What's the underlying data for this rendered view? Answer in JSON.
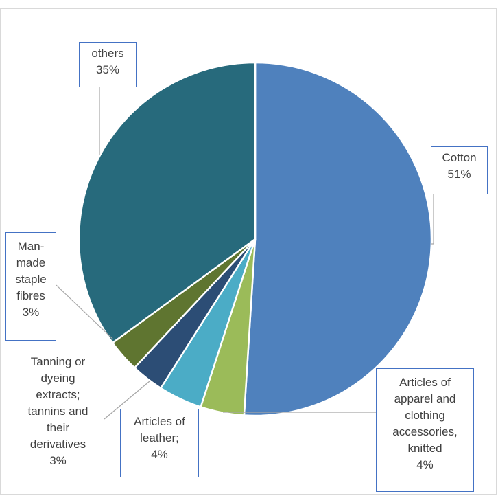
{
  "chart_data": {
    "type": "pie",
    "title": "",
    "slices": [
      {
        "label": "Cotton",
        "value": 51,
        "pct_label": "51%",
        "color": "#4f81bd"
      },
      {
        "label": "Articles of apparel and clothing accessories, knitted",
        "value": 4,
        "pct_label": "4%",
        "color": "#9bbb59"
      },
      {
        "label": "Articles of leather;",
        "value": 4,
        "pct_label": "4%",
        "color": "#4bacc6"
      },
      {
        "label": "Tanning or dyeing extracts; tannins and their derivatives",
        "value": 3,
        "pct_label": "3%",
        "color": "#2c4d75"
      },
      {
        "label": "Man-made staple fibres",
        "value": 3,
        "pct_label": "3%",
        "color": "#5f7530"
      },
      {
        "label": "others",
        "value": 35,
        "pct_label": "35%",
        "color": "#276a7c"
      }
    ]
  }
}
